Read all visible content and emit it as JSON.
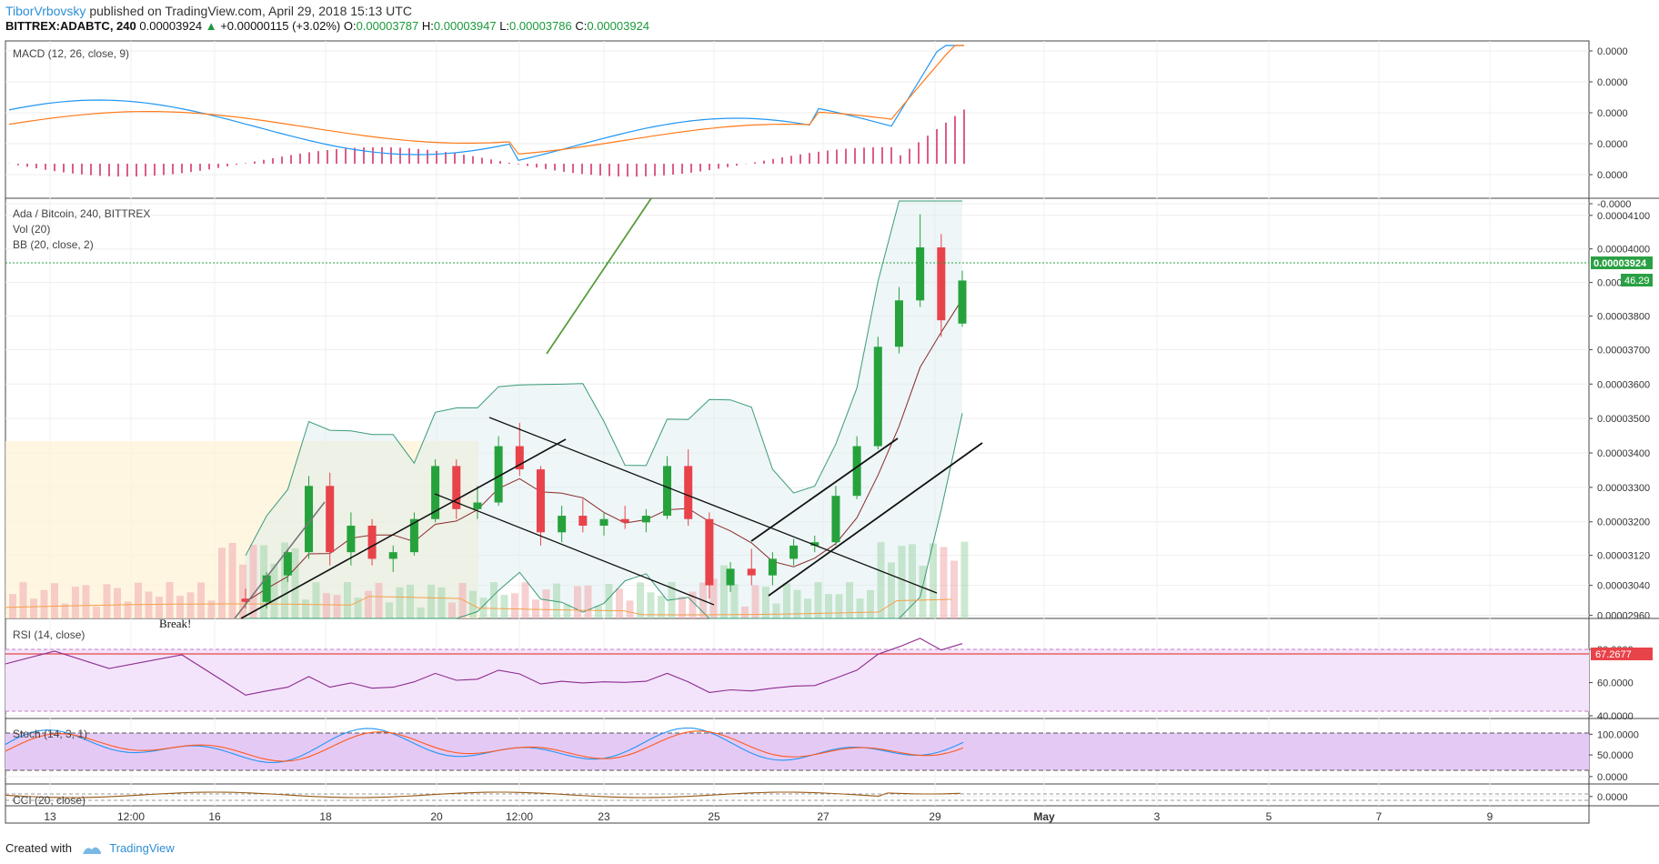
{
  "header": {
    "author": "TiborVrbovsky",
    "published": "published on TradingView.com, April 29, 2018 15:13 UTC",
    "symbol": "BITTREX:ADABTC, 240",
    "last": "0.00003924",
    "change": "+0.00000115 (+3.02%)",
    "o_label": "O:",
    "o": "0.00003787",
    "h_label": "H:",
    "h": "0.00003947",
    "l_label": "L:",
    "l": "0.00003786",
    "c_label": "C:",
    "c": "0.00003924"
  },
  "footer": {
    "created_with": "Created with",
    "brand": "TradingView"
  },
  "panes": {
    "macd": {
      "label": "MACD (12, 26, close, 9)",
      "ticks": [
        "0.0000",
        "0.0000",
        "0.0000",
        "0.0000",
        "0.0000",
        "-0.0000"
      ]
    },
    "price": {
      "labels": [
        "Ada / Bitcoin, 240, BITTREX",
        "Vol (20)",
        "BB (20, close, 2)"
      ],
      "ticks": [
        "0.00004100",
        "0.00004000",
        "0.00003900",
        "0.00003800",
        "0.00003700",
        "0.00003600",
        "0.00003500",
        "0.00003400",
        "0.00003300",
        "0.00003200",
        "0.00003120",
        "0.00003040",
        "0.00002960"
      ],
      "last_price_badge": "0.00003924",
      "volume_badge": "46.29",
      "annotation": "Break!"
    },
    "rsi": {
      "label": "RSI (14, close)",
      "ticks": [
        "80.0000",
        "60.0000",
        "40.0000"
      ],
      "value_badge": "67.2677"
    },
    "stoch": {
      "label": "Stoch (14, 3, 1)",
      "ticks": [
        "100.0000",
        "50.0000",
        "0.0000"
      ]
    },
    "cci": {
      "label": "CCI (20, close)",
      "ticks": [
        "0.0000"
      ]
    }
  },
  "x_axis": {
    "labels": [
      "13",
      "12:00",
      "16",
      "18",
      "20",
      "12:00",
      "23",
      "25",
      "27",
      "29",
      "May",
      "3",
      "5",
      "7",
      "9"
    ]
  },
  "colors": {
    "up": "#26a23c",
    "down": "#e8434a",
    "accent": "#2f8fd6",
    "macd": "#2196f3",
    "signal": "#ff7a1a",
    "rsi": "#8e2a8e",
    "bb": "#3a9b77"
  },
  "chart_data": {
    "type": "candlestick",
    "interval": "240",
    "last_close": 3.924e-05,
    "price_candles_approx": [
      {
        "o": 2.96e-05,
        "h": 2.99e-05,
        "l": 2.93e-05,
        "c": 2.95e-05
      },
      {
        "o": 2.95e-05,
        "h": 3.04e-05,
        "l": 2.93e-05,
        "c": 3.03e-05
      },
      {
        "o": 3.03e-05,
        "h": 3.11e-05,
        "l": 3.01e-05,
        "c": 3.1e-05
      },
      {
        "o": 3.1e-05,
        "h": 3.33e-05,
        "l": 3.08e-05,
        "c": 3.3e-05
      },
      {
        "o": 3.3e-05,
        "h": 3.34e-05,
        "l": 3.06e-05,
        "c": 3.1e-05
      },
      {
        "o": 3.1e-05,
        "h": 3.22e-05,
        "l": 3.06e-05,
        "c": 3.18e-05
      },
      {
        "o": 3.18e-05,
        "h": 3.2e-05,
        "l": 3.06e-05,
        "c": 3.08e-05
      },
      {
        "o": 3.08e-05,
        "h": 3.12e-05,
        "l": 3.04e-05,
        "c": 3.1e-05
      },
      {
        "o": 3.1e-05,
        "h": 3.22e-05,
        "l": 3.09e-05,
        "c": 3.2e-05
      },
      {
        "o": 3.2e-05,
        "h": 3.38e-05,
        "l": 3.19e-05,
        "c": 3.36e-05
      },
      {
        "o": 3.36e-05,
        "h": 3.38e-05,
        "l": 3.2e-05,
        "c": 3.23e-05
      },
      {
        "o": 3.23e-05,
        "h": 3.3e-05,
        "l": 3.2e-05,
        "c": 3.25e-05
      },
      {
        "o": 3.25e-05,
        "h": 3.45e-05,
        "l": 3.24e-05,
        "c": 3.42e-05
      },
      {
        "o": 3.42e-05,
        "h": 3.49e-05,
        "l": 3.33e-05,
        "c": 3.35e-05
      },
      {
        "o": 3.35e-05,
        "h": 3.36e-05,
        "l": 3.12e-05,
        "c": 3.16e-05
      },
      {
        "o": 3.16e-05,
        "h": 3.24e-05,
        "l": 3.13e-05,
        "c": 3.21e-05
      },
      {
        "o": 3.21e-05,
        "h": 3.26e-05,
        "l": 3.16e-05,
        "c": 3.18e-05
      },
      {
        "o": 3.18e-05,
        "h": 3.22e-05,
        "l": 3.15e-05,
        "c": 3.2e-05
      },
      {
        "o": 3.2e-05,
        "h": 3.24e-05,
        "l": 3.17e-05,
        "c": 3.19e-05
      },
      {
        "o": 3.19e-05,
        "h": 3.23e-05,
        "l": 3.16e-05,
        "c": 3.21e-05
      },
      {
        "o": 3.21e-05,
        "h": 3.39e-05,
        "l": 3.2e-05,
        "c": 3.36e-05
      },
      {
        "o": 3.36e-05,
        "h": 3.41e-05,
        "l": 3.18e-05,
        "c": 3.2e-05
      },
      {
        "o": 3.2e-05,
        "h": 3.22e-05,
        "l": 2.96e-05,
        "c": 3e-05
      },
      {
        "o": 3e-05,
        "h": 3.07e-05,
        "l": 2.98e-05,
        "c": 3.05e-05
      },
      {
        "o": 3.05e-05,
        "h": 3.11e-05,
        "l": 3e-05,
        "c": 3.03e-05
      },
      {
        "o": 3.03e-05,
        "h": 3.1e-05,
        "l": 3e-05,
        "c": 3.08e-05
      },
      {
        "o": 3.08e-05,
        "h": 3.14e-05,
        "l": 3.06e-05,
        "c": 3.12e-05
      },
      {
        "o": 3.12e-05,
        "h": 3.15e-05,
        "l": 3.1e-05,
        "c": 3.13e-05
      },
      {
        "o": 3.13e-05,
        "h": 3.3e-05,
        "l": 3.12e-05,
        "c": 3.27e-05
      },
      {
        "o": 3.27e-05,
        "h": 3.45e-05,
        "l": 3.26e-05,
        "c": 3.42e-05
      },
      {
        "o": 3.42e-05,
        "h": 3.75e-05,
        "l": 3.41e-05,
        "c": 3.72e-05
      },
      {
        "o": 3.72e-05,
        "h": 3.9e-05,
        "l": 3.7e-05,
        "c": 3.86e-05
      },
      {
        "o": 3.86e-05,
        "h": 4.12e-05,
        "l": 3.84e-05,
        "c": 4.02e-05
      },
      {
        "o": 4.02e-05,
        "h": 4.06e-05,
        "l": 3.75e-05,
        "c": 3.8e-05
      },
      {
        "o": 3.79e-05,
        "h": 3.95e-05,
        "l": 3.78e-05,
        "c": 3.92e-05
      }
    ]
  }
}
